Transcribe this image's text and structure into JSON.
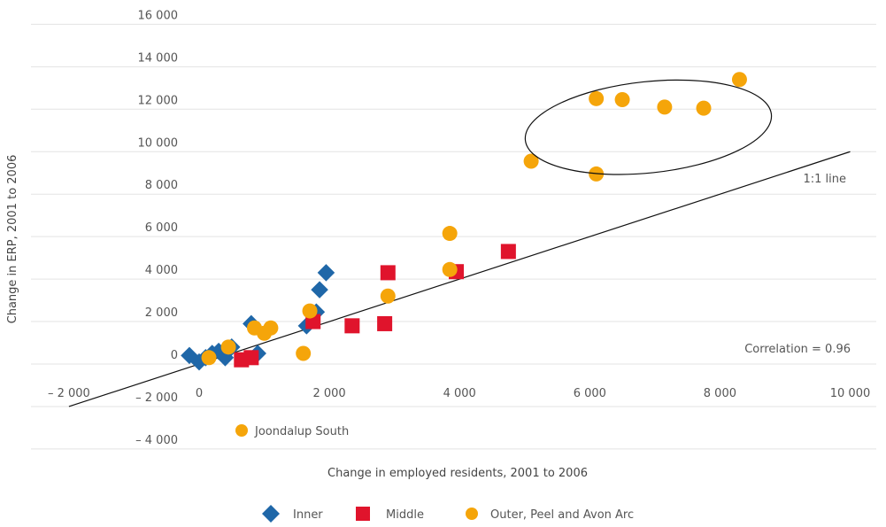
{
  "chart_data": {
    "type": "scatter",
    "xlabel": "Change in employed residents, 2001 to 2006",
    "ylabel": "Change in ERP, 2001 to 2006",
    "xlim": [
      -2000,
      10000
    ],
    "ylim": [
      -4000,
      16000
    ],
    "x_ticks": [
      -2000,
      0,
      2000,
      4000,
      6000,
      8000,
      10000
    ],
    "x_tick_labels": [
      "– 2 000",
      "0",
      "2 000",
      "4 000",
      "6 000",
      "8 000",
      "10 000"
    ],
    "y_ticks": [
      -4000,
      -2000,
      0,
      2000,
      4000,
      6000,
      8000,
      10000,
      12000,
      14000,
      16000
    ],
    "y_tick_labels": [
      "– 4 000",
      "– 2 000",
      "0",
      "2 000",
      "4 000",
      "6 000",
      "8 000",
      "10 000",
      "12 000",
      "14 000",
      "16 000"
    ],
    "grid": "horizontal",
    "legend_position": "bottom",
    "series": [
      {
        "name": "Inner",
        "marker": "diamond",
        "color": "#1f67a8",
        "points": [
          [
            -150,
            400
          ],
          [
            0,
            100
          ],
          [
            100,
            300
          ],
          [
            200,
            500
          ],
          [
            300,
            600
          ],
          [
            400,
            300
          ],
          [
            500,
            800
          ],
          [
            800,
            1900
          ],
          [
            900,
            500
          ],
          [
            1650,
            1800
          ],
          [
            1800,
            2450
          ],
          [
            1850,
            3500
          ],
          [
            1950,
            4300
          ]
        ]
      },
      {
        "name": "Middle",
        "marker": "square",
        "color": "#e0142c",
        "points": [
          [
            650,
            200
          ],
          [
            800,
            300
          ],
          [
            1750,
            2000
          ],
          [
            2350,
            1800
          ],
          [
            2850,
            1900
          ],
          [
            2900,
            4300
          ],
          [
            3950,
            4350
          ],
          [
            4750,
            5300
          ]
        ]
      },
      {
        "name": "Outer, Peel and Avon Arc",
        "marker": "circle",
        "color": "#f5a50a",
        "points": [
          [
            150,
            300
          ],
          [
            450,
            800
          ],
          [
            850,
            1700
          ],
          [
            1000,
            1450
          ],
          [
            1100,
            1700
          ],
          [
            1600,
            500
          ],
          [
            1700,
            2500
          ],
          [
            2900,
            3200
          ],
          [
            3850,
            6150
          ],
          [
            3850,
            4450
          ],
          [
            5100,
            9550
          ],
          [
            6100,
            12500
          ],
          [
            6500,
            12450
          ],
          [
            7150,
            12100
          ],
          [
            7750,
            12050
          ],
          [
            8300,
            13400
          ],
          [
            6100,
            8950
          ]
        ]
      }
    ],
    "reference_line": {
      "label": "1:1 line",
      "x": [
        -2000,
        10000
      ],
      "y": [
        -2000,
        10000
      ]
    },
    "correlation_label": "Correlation = 0.96",
    "point_annotation": {
      "label": "Joondalup South",
      "color": "#f5a50a"
    },
    "outlier_ellipse": {
      "cx": 6900,
      "cy": 11150,
      "rx": 1900,
      "ry": 2150
    }
  }
}
